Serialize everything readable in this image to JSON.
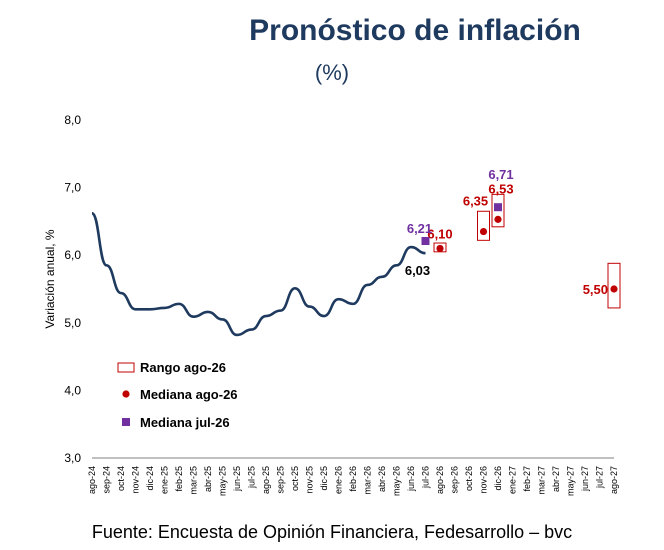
{
  "title": "Pronóstico de inflación",
  "subtitle": "(%)",
  "source": "Fuente: Encuesta de Opinión Financiera, Fedesarrollo – bvc",
  "colors": {
    "title": "#1f3a5f",
    "line": "#1f3a5f",
    "median_ago26": "#c00000",
    "median_jul26": "#7030a0",
    "range_border": "#c00000",
    "label_last": "#000000"
  },
  "chart_data": {
    "type": "line",
    "title": "Pronóstico de inflación",
    "subtitle": "(%)",
    "ylabel": "Variación anual, %",
    "xlabel": "",
    "ylim": [
      3.0,
      8.0
    ],
    "yticks": [
      "3,0",
      "4,0",
      "5,0",
      "6,0",
      "7,0",
      "8,0"
    ],
    "grid": false,
    "legend_position": "left-middle",
    "categories": [
      "ago-24",
      "sep-24",
      "oct-24",
      "nov-24",
      "dic-24",
      "ene-25",
      "feb-25",
      "mar-25",
      "abr-25",
      "may-25",
      "jun-25",
      "jul-25",
      "ago-25",
      "sep-25",
      "oct-25",
      "nov-25",
      "dic-25",
      "ene-26",
      "feb-26",
      "mar-26",
      "abr-26",
      "may-26",
      "jun-26",
      "jul-26",
      "ago-26",
      "sep-26",
      "oct-26",
      "nov-26",
      "dic-26",
      "ene-27",
      "feb-27",
      "mar-27",
      "abr-27",
      "may-27",
      "jun-27",
      "jul-27",
      "ago-27"
    ],
    "series": [
      {
        "kind": "line",
        "x": [
          "ago-24",
          "sep-24",
          "oct-24",
          "nov-24",
          "dic-24",
          "ene-25",
          "feb-25",
          "mar-25",
          "abr-25",
          "may-25",
          "jun-25",
          "jul-25",
          "ago-25",
          "sep-25",
          "oct-25",
          "nov-25",
          "dic-25",
          "ene-26",
          "feb-26",
          "mar-26",
          "abr-26",
          "may-26",
          "jun-26",
          "jul-26"
        ],
        "values": [
          6.62,
          5.85,
          5.44,
          5.2,
          5.2,
          5.22,
          5.28,
          5.09,
          5.16,
          5.05,
          4.82,
          4.9,
          5.1,
          5.18,
          5.51,
          5.24,
          5.1,
          5.35,
          5.28,
          5.56,
          5.68,
          5.85,
          6.12,
          6.03
        ]
      },
      {
        "name": "Rango ago-26",
        "kind": "range",
        "points": [
          {
            "x": "ago-26",
            "low": 6.05,
            "high": 6.18
          },
          {
            "x": "nov-26",
            "low": 6.22,
            "high": 6.65
          },
          {
            "x": "dic-26",
            "low": 6.42,
            "high": 6.9
          },
          {
            "x": "ago-27",
            "low": 5.22,
            "high": 5.88
          }
        ]
      },
      {
        "name": "Mediana ago-26",
        "kind": "points",
        "points": [
          {
            "x": "ago-26",
            "y": 6.1,
            "label": "6,10"
          },
          {
            "x": "nov-26",
            "y": 6.35,
            "label": "6,35"
          },
          {
            "x": "dic-26",
            "y": 6.53,
            "label": "6,53"
          },
          {
            "x": "ago-27",
            "y": 5.5,
            "label": "5,50"
          }
        ]
      },
      {
        "name": "Mediana jul-26",
        "kind": "points",
        "points": [
          {
            "x": "jul-26",
            "y": 6.21,
            "label": "6,21"
          },
          {
            "x": "dic-26",
            "y": 6.71,
            "label": "6,71"
          }
        ]
      }
    ],
    "annotations": [
      {
        "x": "jul-26",
        "y": 6.03,
        "label": "6,03"
      }
    ],
    "legend": [
      "Rango ago-26",
      "Mediana ago-26",
      "Mediana jul-26"
    ]
  }
}
